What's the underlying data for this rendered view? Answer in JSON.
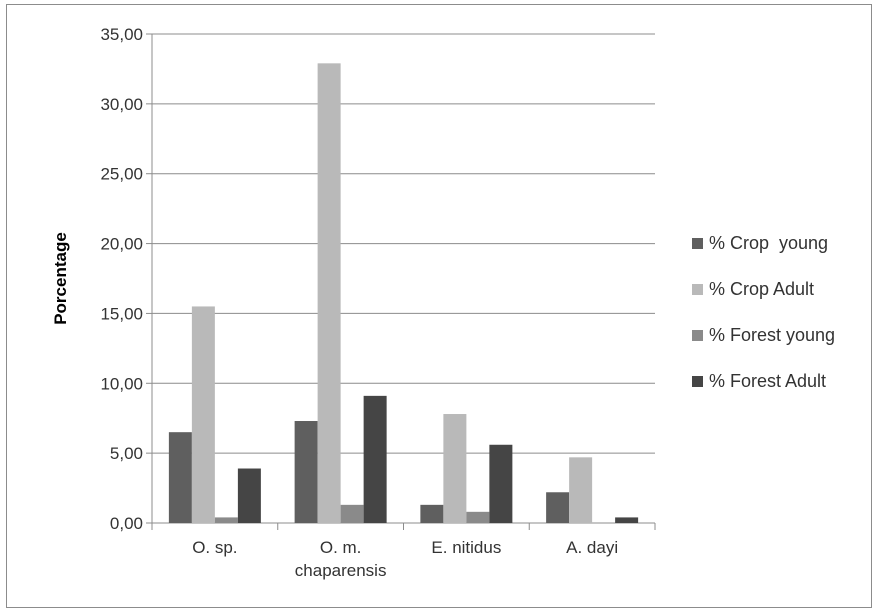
{
  "chart_data": {
    "type": "bar",
    "title": "",
    "xlabel": "",
    "ylabel": "Porcentage",
    "ylim": [
      0,
      35
    ],
    "ytick_values": [
      0,
      5,
      10,
      15,
      20,
      25,
      30,
      35
    ],
    "ytick_labels": [
      "0,00",
      "5,00",
      "10,00",
      "15,00",
      "20,00",
      "25,00",
      "30,00",
      "35,00"
    ],
    "grid": "horizontal",
    "legend_position": "right",
    "categories": [
      [
        "O. sp."
      ],
      [
        "O. m.",
        "chaparensis"
      ],
      [
        "E. nitidus"
      ],
      [
        "A. dayi"
      ]
    ],
    "series": [
      {
        "name": "% Crop  young",
        "color": "#5f5f5f",
        "values": [
          6.5,
          7.3,
          1.3,
          2.2
        ]
      },
      {
        "name": "% Crop Adult",
        "color": "#b9b9b9",
        "values": [
          15.5,
          32.9,
          7.8,
          4.7
        ]
      },
      {
        "name": "% Forest young",
        "color": "#8a8a8a",
        "values": [
          0.4,
          1.3,
          0.8,
          0.0
        ]
      },
      {
        "name": "% Forest Adult",
        "color": "#454545",
        "values": [
          3.9,
          9.1,
          5.6,
          0.4
        ]
      }
    ]
  }
}
